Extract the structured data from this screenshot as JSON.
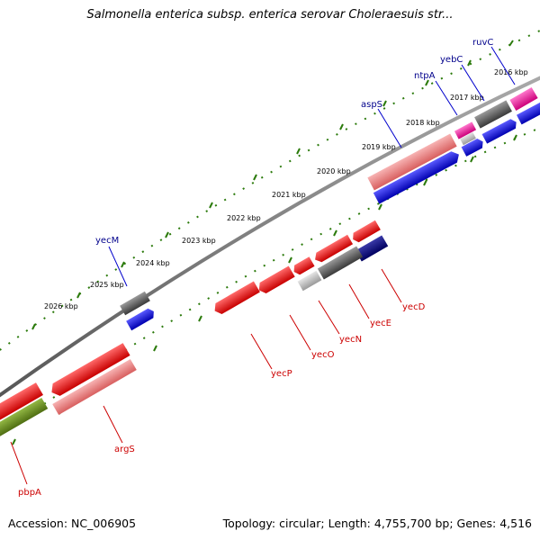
{
  "title": "Salmonella enterica subsp. enterica serovar Choleraesuis str...",
  "footer": {
    "accession": "Accession: NC_006905",
    "summary": "Topology: circular; Length: 4,755,700 bp; Genes: 4,516"
  },
  "colors": {
    "backbone": "#777777",
    "tick": "#2b7a0b",
    "label_forward": "#00008b",
    "label_reverse": "#cc0000"
  },
  "kbp_labels": [
    "2016 kbp",
    "2017 kbp",
    "2018 kbp",
    "2019 kbp",
    "2020 kbp",
    "2021 kbp",
    "2022 kbp",
    "2023 kbp",
    "2024 kbp",
    "2025 kbp",
    "2026 kbp"
  ],
  "forward_labels": [
    "ruvC",
    "yebC",
    "ntpA",
    "aspS",
    "yecM"
  ],
  "reverse_labels": [
    "yecD",
    "yecE",
    "yecN",
    "yecO",
    "yecP",
    "argS",
    "pbpA"
  ]
}
